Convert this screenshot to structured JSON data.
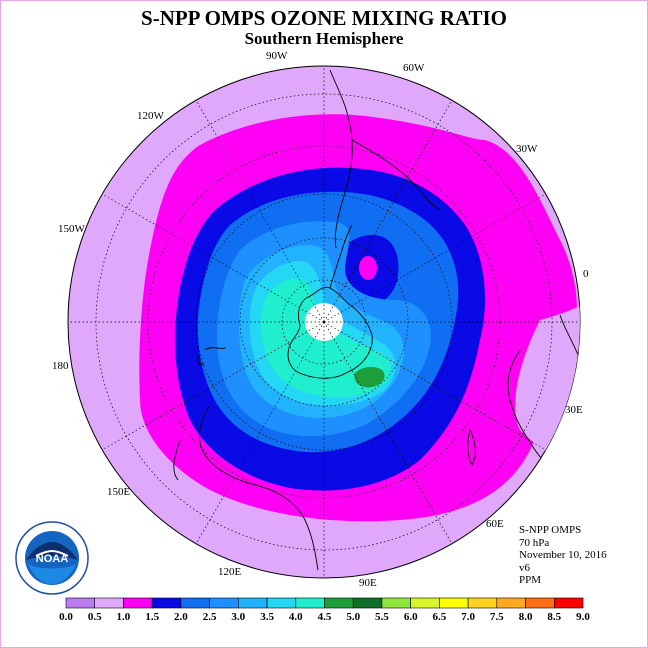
{
  "title": "S-NPP OMPS OZONE MIXING RATIO",
  "subtitle": "Southern Hemisphere",
  "longitude_labels": [
    "90W",
    "60W",
    "30W",
    "0",
    "30E",
    "60E",
    "90E",
    "120E",
    "150E",
    "180",
    "150W",
    "120W"
  ],
  "info": {
    "product": "S-NPP OMPS",
    "level": "70 hPa",
    "date": "November 10, 2016",
    "version": "v6",
    "units": "PPM"
  },
  "logo_text": "NOAA",
  "colorbar": {
    "ticks": [
      "0.0",
      "0.5",
      "1.0",
      "1.5",
      "2.0",
      "2.5",
      "3.0",
      "3.5",
      "4.0",
      "4.5",
      "5.0",
      "5.5",
      "6.0",
      "6.5",
      "7.0",
      "7.5",
      "8.0",
      "8.5",
      "9.0"
    ],
    "colors": [
      "#b97cf2",
      "#e0a8fb",
      "#ff00f5",
      "#0a0ae6",
      "#0f6ef2",
      "#1e8fff",
      "#22b3ff",
      "#24d7f5",
      "#1fefcf",
      "#1d9e3a",
      "#0f6e28",
      "#8fe63c",
      "#d8f52a",
      "#ffff00",
      "#ffd21e",
      "#ffaa1e",
      "#ff6e14",
      "#ff0000",
      "#8b5a3c"
    ]
  },
  "map_colors": {
    "background": "#e0a8fb",
    "magenta": "#ff00f5",
    "dark_blue": "#0a0ae6",
    "blue": "#0f6ef2",
    "mid_blue": "#1e8fff",
    "light_blue": "#22b3ff",
    "cyan": "#24d7f5",
    "aqua": "#1fefcf",
    "green": "#1d9e3a",
    "pole_hole": "#ffffff"
  }
}
